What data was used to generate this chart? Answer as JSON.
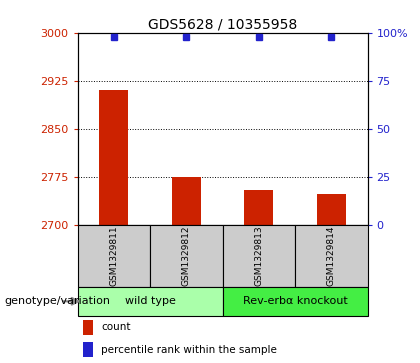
{
  "title": "GDS5628 / 10355958",
  "samples": [
    "GSM1329811",
    "GSM1329812",
    "GSM1329813",
    "GSM1329814"
  ],
  "counts": [
    2910,
    2775,
    2755,
    2748
  ],
  "percentiles": [
    98,
    98,
    98,
    98
  ],
  "ylim_left": [
    2700,
    3000
  ],
  "ylim_right": [
    0,
    100
  ],
  "yticks_left": [
    2700,
    2775,
    2850,
    2925,
    3000
  ],
  "yticks_right": [
    0,
    25,
    50,
    75,
    100
  ],
  "ytick_labels_right": [
    "0",
    "25",
    "50",
    "75",
    "100%"
  ],
  "bar_color": "#cc2200",
  "dot_color": "#2222cc",
  "bg_color": "#ffffff",
  "sample_cell_color": "#cccccc",
  "groups": [
    {
      "label": "wild type",
      "indices": [
        0,
        1
      ],
      "color": "#aaffaa"
    },
    {
      "label": "Rev-erbα knockout",
      "indices": [
        2,
        3
      ],
      "color": "#44ee44"
    }
  ],
  "genotype_label": "genotype/variation",
  "legend_items": [
    {
      "color": "#cc2200",
      "label": "count"
    },
    {
      "color": "#2222cc",
      "label": "percentile rank within the sample"
    }
  ],
  "left_tick_color": "#cc2200",
  "right_tick_color": "#2222cc",
  "title_fontsize": 10,
  "tick_fontsize": 8,
  "sample_fontsize": 6.5,
  "group_fontsize": 8,
  "legend_fontsize": 7.5,
  "genotype_fontsize": 8
}
